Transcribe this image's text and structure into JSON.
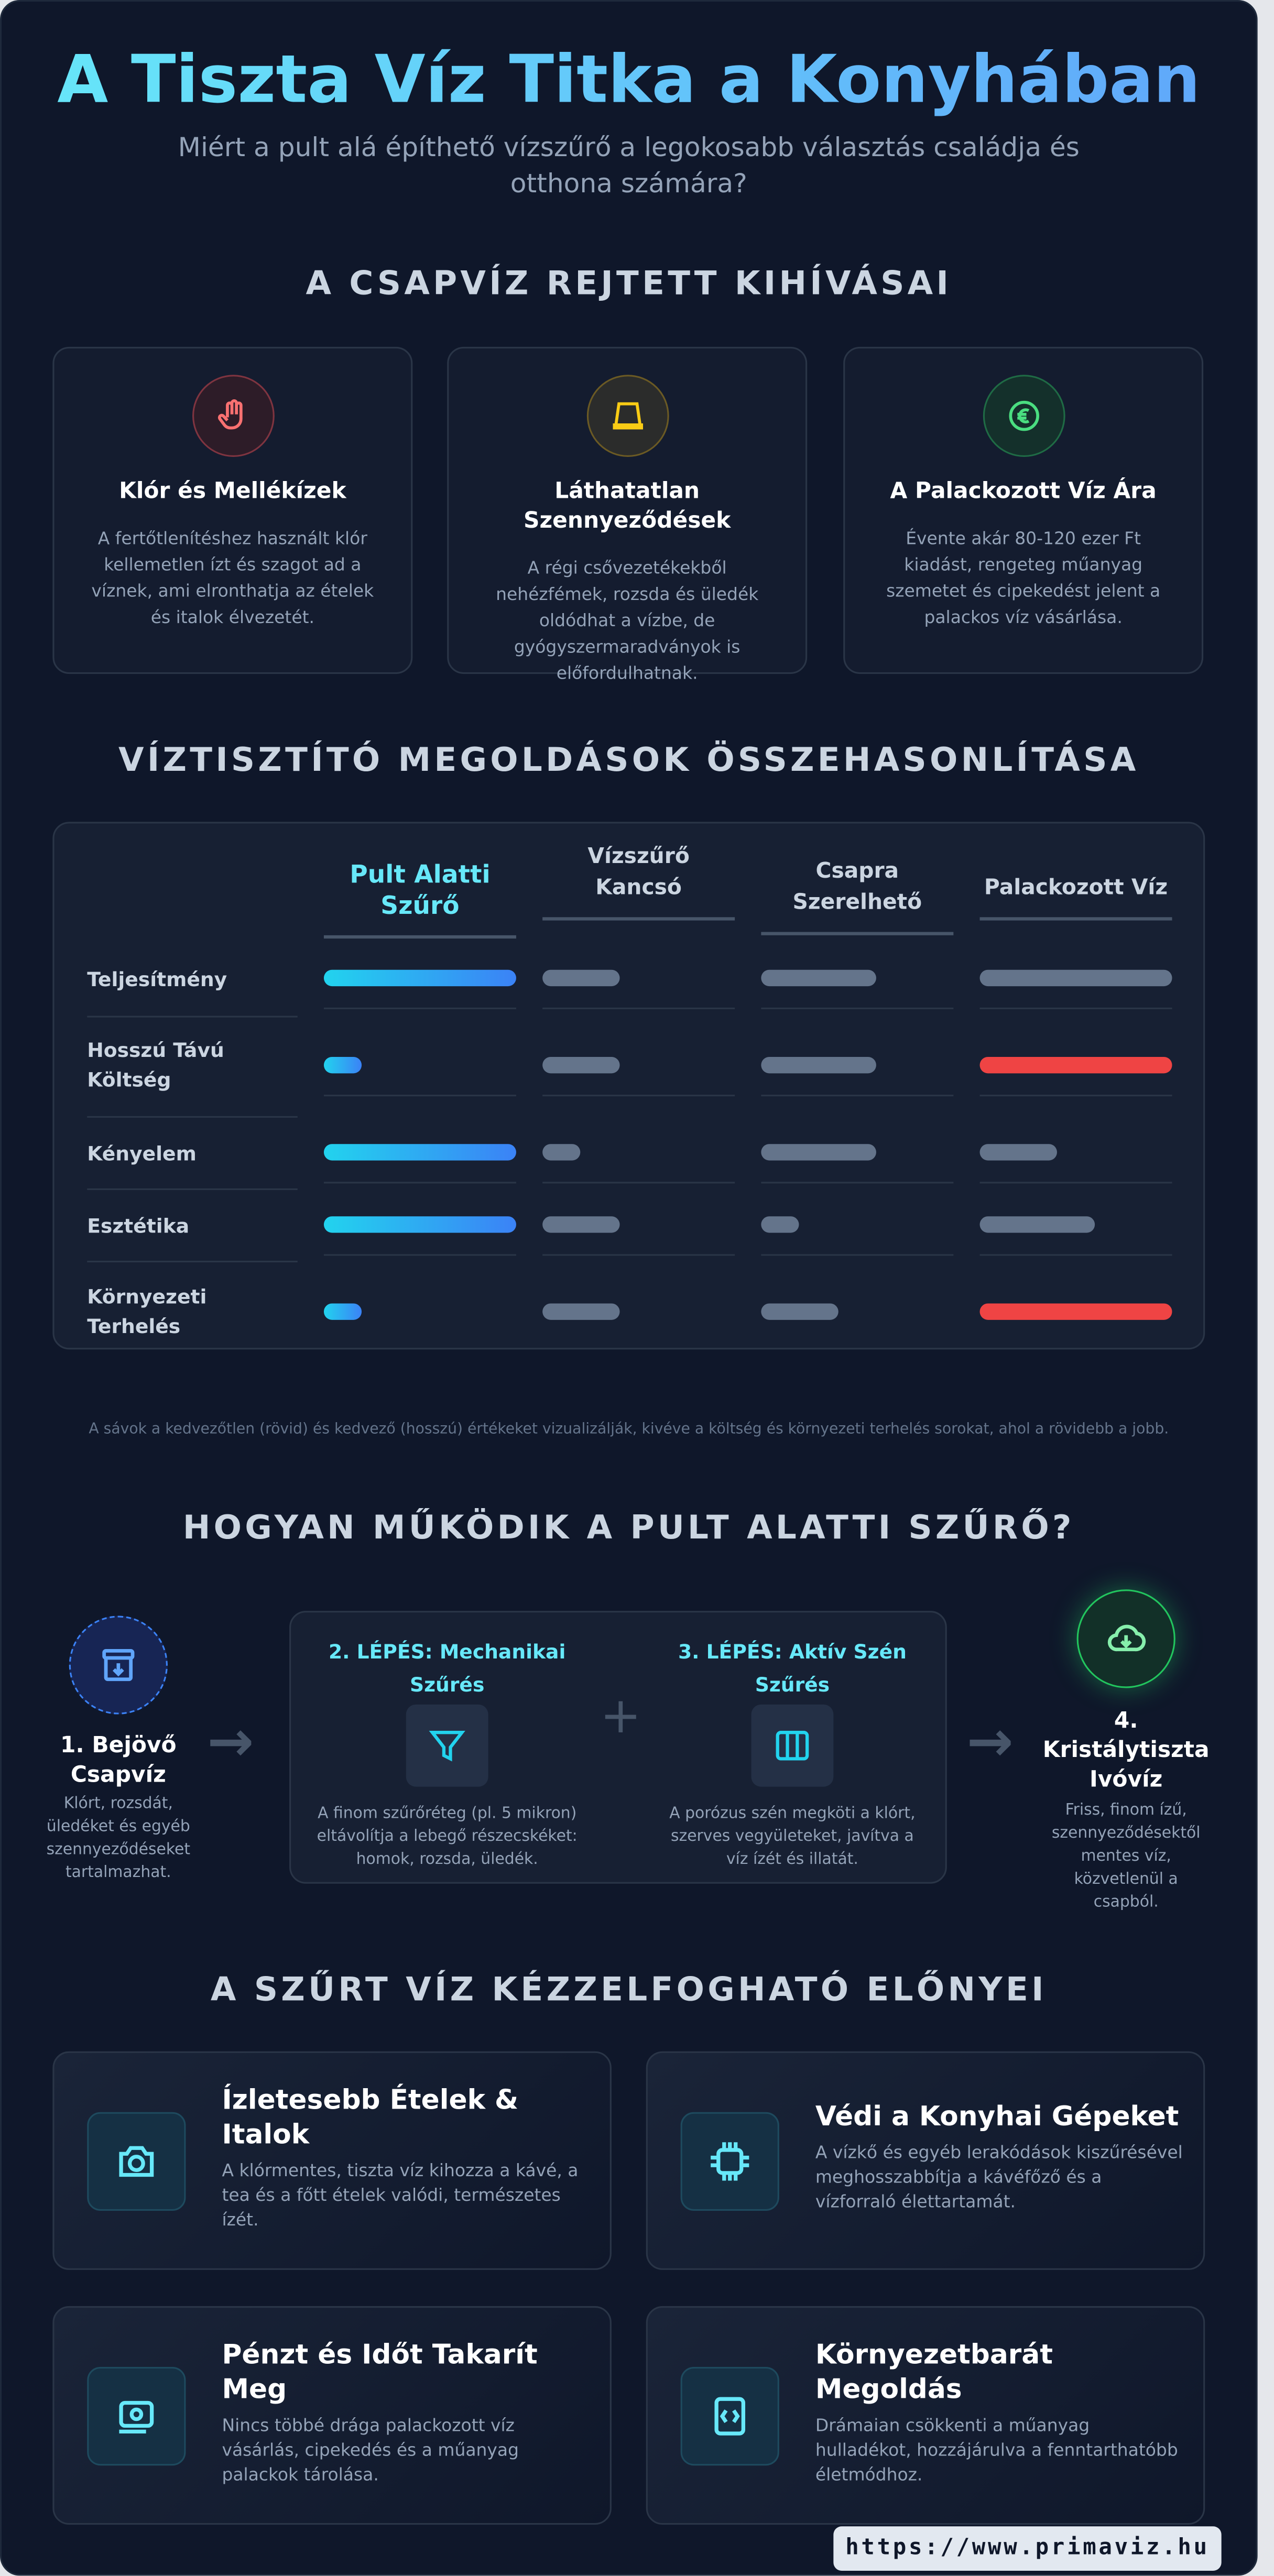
{
  "header": {
    "title": "A Tiszta Víz Titka a Konyhában",
    "subtitle": "Miért a pult alá építhető vízszűrő a legokosabb választás családja és otthona számára?"
  },
  "challenges": {
    "heading": "A CSAPVÍZ REJTETT KIHÍVÁSAI",
    "cards": [
      {
        "icon": "hand-icon",
        "color": "#f87171",
        "title": "Klór és Mellékízek",
        "desc": "A fertőtlenítéshez használt klór kellemetlen ízt és szagot ad a víznek, ami elronthatja az ételek és italok élvezetét."
      },
      {
        "icon": "bucket-icon",
        "color": "#facc15",
        "title": "Láthatatlan Szennyeződések",
        "desc": "A régi csővezetékekből nehézfémek, rozsda és üledék oldódhat a vízbe, de gyógyszermaradványok is előfordulhatnak."
      },
      {
        "icon": "euro-icon",
        "color": "#4ade80",
        "title": "A Palackozott Víz Ára",
        "desc": "Évente akár 80-120 ezer Ft kiadást, rengeteg műanyag szemetet és cipekedést jelent a palackos víz vásárlása."
      }
    ]
  },
  "comparison": {
    "heading": "VÍZTISZTÍTÓ MEGOLDÁSOK ÖSSZEHASONLÍTÁSA",
    "columns": [
      "Pult Alatti Szűrő",
      "Vízszűrő Kancsó",
      "Csapra Szerelhető",
      "Palackozott Víz"
    ],
    "rows": [
      {
        "label": "Teljesítmény",
        "values": [
          100,
          40,
          60,
          100
        ],
        "bad": [
          false,
          false,
          false,
          false
        ]
      },
      {
        "label": "Hosszú Távú Költség",
        "values": [
          20,
          40,
          60,
          100
        ],
        "bad": [
          false,
          false,
          false,
          true
        ]
      },
      {
        "label": "Kényelem",
        "values": [
          100,
          20,
          60,
          40
        ],
        "bad": [
          false,
          false,
          false,
          false
        ]
      },
      {
        "label": "Esztétika",
        "values": [
          100,
          40,
          20,
          60
        ],
        "bad": [
          false,
          false,
          false,
          false
        ]
      },
      {
        "label": "Környezeti Terhelés",
        "values": [
          20,
          40,
          40,
          100
        ],
        "bad": [
          false,
          false,
          false,
          true
        ]
      }
    ],
    "colors": {
      "highlight_from": "#22d3ee",
      "highlight_to": "#3b82f6",
      "neutral": "#64748b",
      "bad": "#ef4444"
    },
    "footnote": "A sávok a kedvezőtlen (rövid) és kedvező (hosszú) értékeket vizualizálják, kivéve a költség és környezeti terhelés sorokat, ahol a rövidebb a jobb."
  },
  "process": {
    "heading": "HOGYAN MŰKÖDIK A PULT ALATTI SZŰRŐ?",
    "step1": {
      "title": "1. Bejövő Csapvíz",
      "desc": "Klórt, rozsdát, üledéket és egyéb szennyeződéseket tartalmazhat."
    },
    "step2": {
      "title": "2. LÉPÉS: Mechanikai Szűrés",
      "desc": "A finom szűrőréteg (pl. 5 mikron) eltávolítja a lebegő részecskéket: homok, rozsda, üledék."
    },
    "step3": {
      "title": "3. LÉPÉS: Aktív Szén Szűrés",
      "desc": "A porózus szén megköti a klórt, szerves vegyületeket, javítva a víz ízét és illatát."
    },
    "step4": {
      "title": "4. Kristálytiszta Ivóvíz",
      "desc": "Friss, finom ízű, szennyeződésektől mentes víz, közvetlenül a csapból."
    }
  },
  "benefits": {
    "heading": "A SZŰRT VÍZ KÉZZELFOGHATÓ ELŐNYEI",
    "cards": [
      {
        "icon": "camera-icon",
        "title": "Ízletesebb Ételek & Italok",
        "desc": "A klórmentes, tiszta víz kihozza a kávé, a tea és a főtt ételek valódi, természetes ízét."
      },
      {
        "icon": "chip-icon",
        "title": "Védi a Konyhai Gépeket",
        "desc": "A vízkő és egyéb lerakódások kiszűrésével meghosszabbítja a kávéfőző és a vízforraló élettartamát."
      },
      {
        "icon": "money-icon",
        "title": "Pénzt és Időt Takarít Meg",
        "desc": "Nincs többé drága palackozott víz vásárlás, cipekedés és a műanyag palackok tárolása."
      },
      {
        "icon": "code-icon",
        "title": "Környezetbarát Megoldás",
        "desc": "Drámaian csökkenti a műanyag hulladékot, hozzájárulva a fenntarthatóbb életmódhoz."
      }
    ]
  },
  "footer": {
    "url": "https://www.primaviz.hu"
  }
}
